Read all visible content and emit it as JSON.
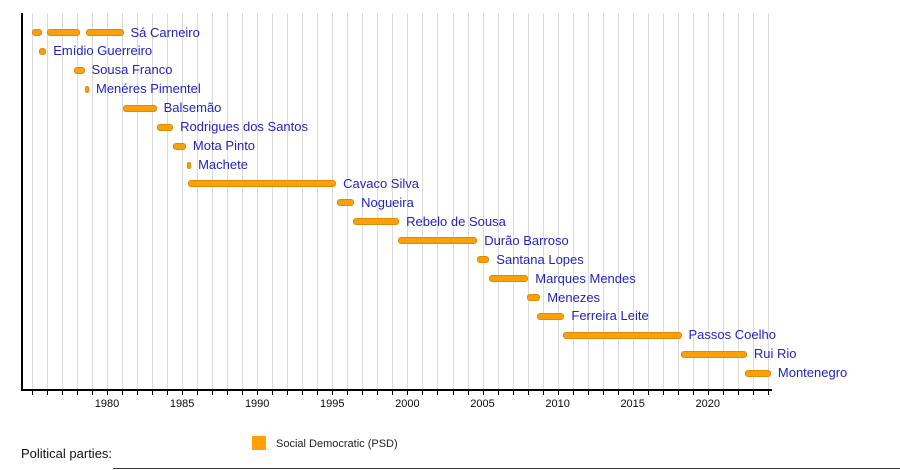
{
  "chart_data": {
    "type": "timeline",
    "description": "Gantt-style timeline of Social Democratic Party (PSD) leaders of Portugal",
    "x_axis": {
      "labeled_ticks": [
        1980,
        1985,
        1990,
        1995,
        2000,
        2005,
        2010,
        2015,
        2020
      ],
      "minor_tick_step_years": 1,
      "first_minor_tick_year": 1975,
      "last_minor_tick_year": 2024,
      "range_years": [
        1974.4,
        2024.3
      ],
      "grid": true
    },
    "rows": [
      {
        "name": "Sá Carneiro",
        "segments": [
          [
            1975.0,
            1975.7
          ],
          [
            1976.0,
            1978.2
          ],
          [
            1978.6,
            1981.1
          ]
        ]
      },
      {
        "name": "Emídio Guerreiro",
        "segments": [
          [
            1975.5,
            1975.95
          ]
        ]
      },
      {
        "name": "Sousa Franco",
        "segments": [
          [
            1977.8,
            1978.5
          ]
        ]
      },
      {
        "name": "Menéres Pimentel",
        "segments": [
          [
            1978.5,
            1978.8
          ]
        ]
      },
      {
        "name": "Balsemão",
        "segments": [
          [
            1981.05,
            1983.3
          ]
        ]
      },
      {
        "name": "Rodrigues dos Santos",
        "segments": [
          [
            1983.3,
            1984.4
          ]
        ]
      },
      {
        "name": "Mota Pinto",
        "segments": [
          [
            1984.4,
            1985.25
          ]
        ]
      },
      {
        "name": "Machete",
        "segments": [
          [
            1985.3,
            1985.6
          ]
        ]
      },
      {
        "name": "Cavaco Silva",
        "segments": [
          [
            1985.4,
            1995.25
          ]
        ]
      },
      {
        "name": "Nogueira",
        "segments": [
          [
            1995.3,
            1996.45
          ]
        ]
      },
      {
        "name": "Rebelo de Sousa",
        "segments": [
          [
            1996.35,
            1999.45
          ]
        ]
      },
      {
        "name": "Durão Barroso",
        "segments": [
          [
            1999.4,
            2004.65
          ]
        ]
      },
      {
        "name": "Santana Lopes",
        "segments": [
          [
            2004.6,
            2005.45
          ]
        ]
      },
      {
        "name": "Marques Mendes",
        "segments": [
          [
            2005.4,
            2008.05
          ]
        ]
      },
      {
        "name": "Menezes",
        "segments": [
          [
            2007.95,
            2008.85
          ]
        ]
      },
      {
        "name": "Ferreira Leite",
        "segments": [
          [
            2008.6,
            2010.45
          ]
        ]
      },
      {
        "name": "Passos Coelho",
        "segments": [
          [
            2010.35,
            2018.25
          ]
        ]
      },
      {
        "name": "Rui Rio",
        "segments": [
          [
            2018.2,
            2022.6
          ]
        ]
      },
      {
        "name": "Montenegro",
        "segments": [
          [
            2022.5,
            2024.2
          ]
        ]
      }
    ],
    "bar_party": "Social Democratic (PSD)"
  },
  "legend": {
    "heading": "Political parties:",
    "items": [
      {
        "label": "Social Democratic (PSD)",
        "color": "#FFA008"
      }
    ]
  },
  "colors": {
    "bar_fill": "#F9A00C",
    "bar_border": "#E08A00",
    "row_label_text": "#2323BE",
    "grid_line": "#DBDBDB",
    "axis": "#000000",
    "tick_label": "#0A0A0A"
  }
}
